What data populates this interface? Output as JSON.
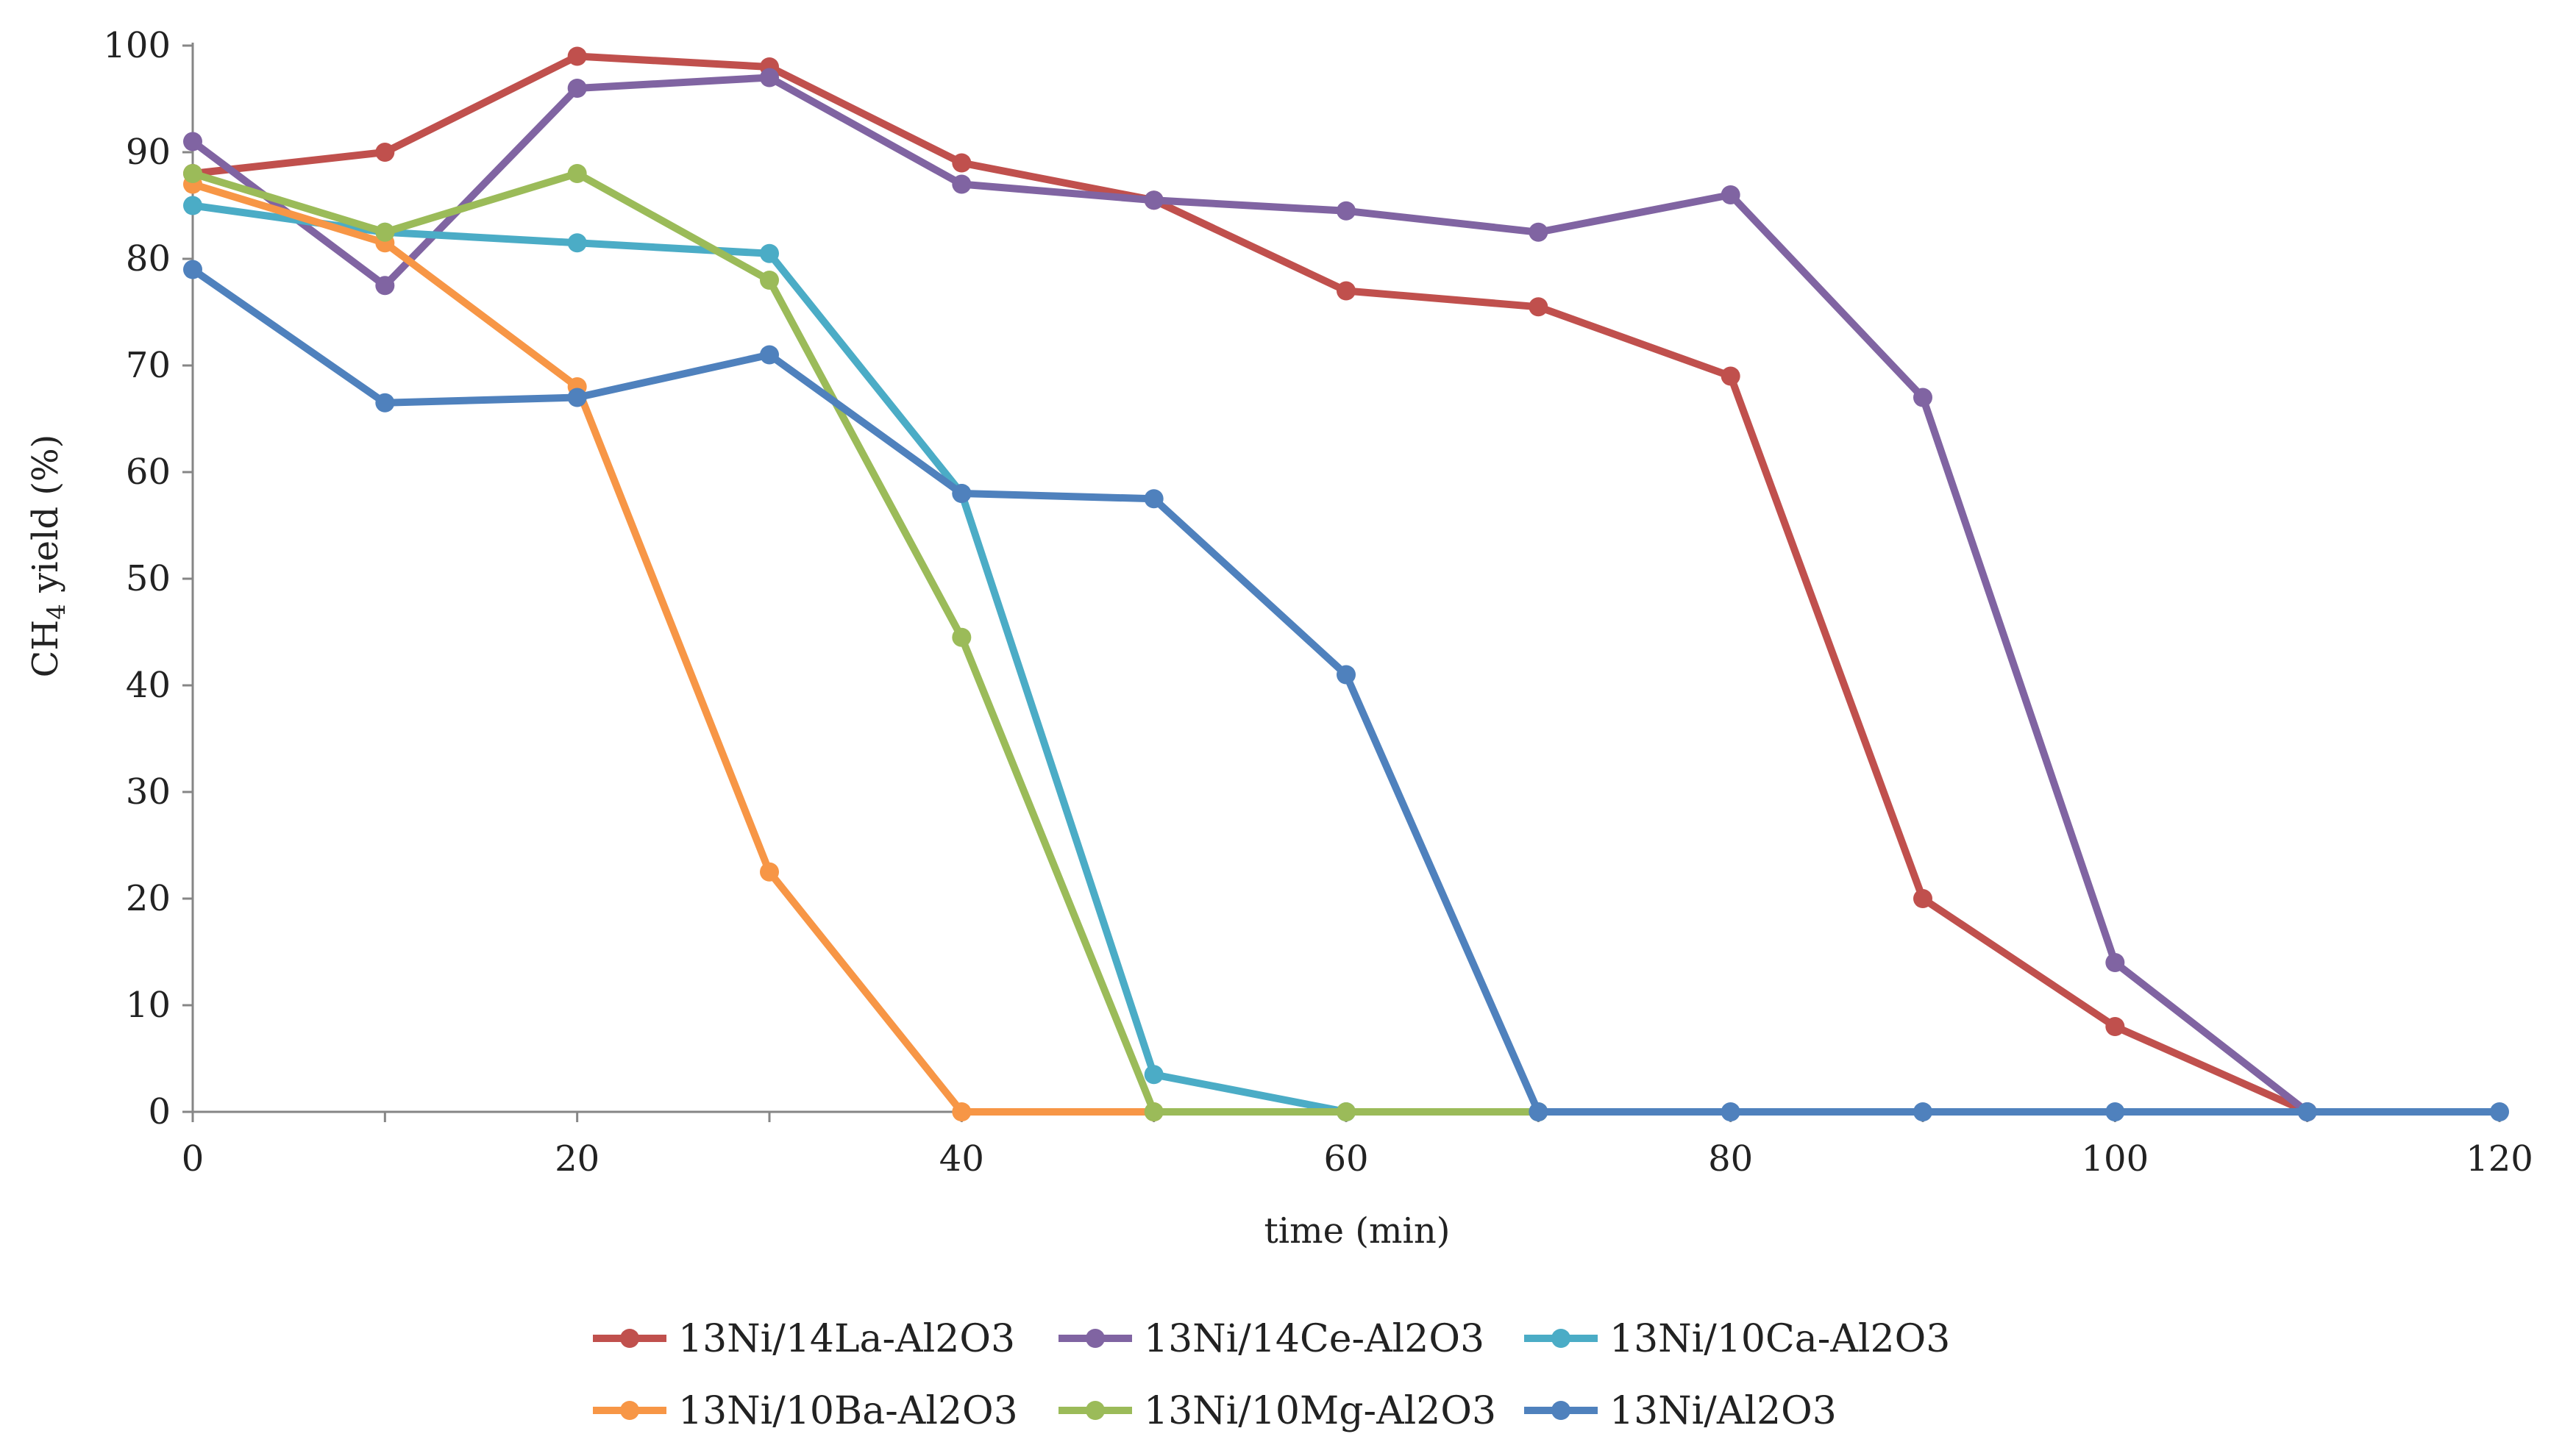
{
  "chart_data": {
    "type": "line",
    "title": "",
    "xlabel": "time (min)",
    "ylabel": "CH4 yield (%)",
    "ylabel_main": "CH",
    "ylabel_sub": "4",
    "ylabel_rest": " yield (%)",
    "xlim": [
      0,
      120
    ],
    "ylim": [
      0,
      100
    ],
    "xticks": [
      0,
      20,
      40,
      60,
      80,
      100,
      120
    ],
    "yticks": [
      0,
      10,
      20,
      30,
      40,
      50,
      60,
      70,
      80,
      90,
      100
    ],
    "grid": false,
    "legend_position": "bottom",
    "x": [
      0,
      10,
      20,
      30,
      40,
      50,
      60,
      70,
      80,
      90,
      100,
      110,
      120
    ],
    "series": [
      {
        "name": "13Ni/14La-Al2O3",
        "color": "#c0504d",
        "x": [
          0,
          10,
          20,
          30,
          40,
          50,
          60,
          70,
          80,
          90,
          100,
          110
        ],
        "values": [
          88,
          90,
          99,
          98,
          89,
          85.5,
          77,
          75.5,
          69,
          20,
          8,
          0
        ]
      },
      {
        "name": "13Ni/14Ce-Al2O3",
        "color": "#8064a2",
        "x": [
          0,
          10,
          20,
          30,
          40,
          50,
          60,
          70,
          80,
          90,
          100,
          110
        ],
        "values": [
          91,
          77.5,
          96,
          97,
          87,
          85.5,
          84.5,
          82.5,
          86,
          67,
          14,
          0
        ]
      },
      {
        "name": "13Ni/10Ca-Al2O3",
        "color": "#4bacc6",
        "x": [
          0,
          10,
          20,
          30,
          40,
          50,
          60
        ],
        "values": [
          85,
          82.5,
          81.5,
          80.5,
          58,
          3.5,
          0
        ]
      },
      {
        "name": "13Ni/10Ba-Al2O3",
        "color": "#f79646",
        "x": [
          0,
          10,
          20,
          30,
          40,
          50
        ],
        "values": [
          87,
          81.5,
          68,
          22.5,
          0,
          0
        ]
      },
      {
        "name": "13Ni/10Mg-Al2O3",
        "color": "#9bbb59",
        "x": [
          0,
          10,
          20,
          30,
          40,
          50,
          60,
          70
        ],
        "values": [
          88,
          82.5,
          88,
          78,
          44.5,
          0,
          0,
          0
        ]
      },
      {
        "name": "13Ni/Al2O3",
        "color": "#4f81bd",
        "x": [
          0,
          10,
          20,
          30,
          40,
          50,
          60,
          70,
          80,
          90,
          100,
          110,
          120
        ],
        "values": [
          79,
          66.5,
          67,
          71,
          58,
          57.5,
          41,
          0,
          0,
          0,
          0,
          0,
          0
        ]
      }
    ]
  }
}
